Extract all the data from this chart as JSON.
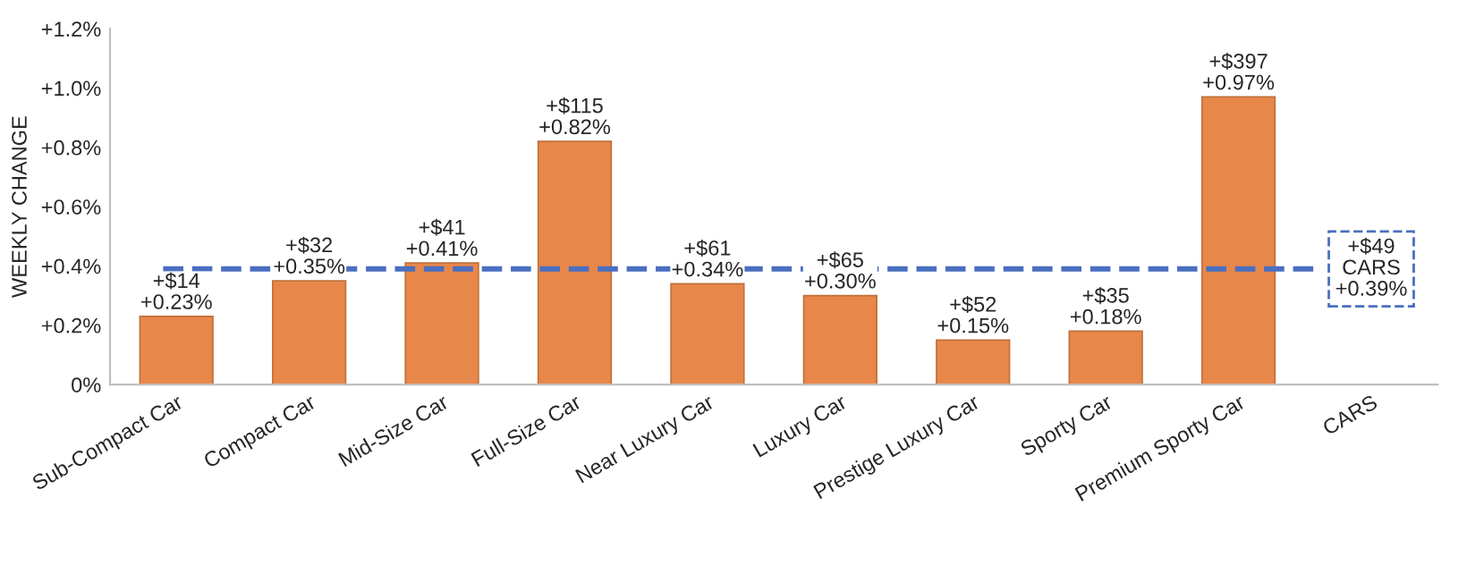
{
  "chart_data": {
    "type": "bar",
    "ylabel": "WEEKLY CHANGE",
    "categories": [
      "Sub-Compact Car",
      "Compact Car",
      "Mid-Size Car",
      "Full-Size Car",
      "Near Luxury Car",
      "Luxury Car",
      "Prestige Luxury Car",
      "Sporty Car",
      "Premium Sporty Car",
      "CARS"
    ],
    "values": [
      0.23,
      0.35,
      0.41,
      0.82,
      0.34,
      0.3,
      0.15,
      0.18,
      0.97,
      null
    ],
    "value_labels": [
      "+$14\n+0.23%",
      "+$32\n+0.35%",
      "+$41\n+0.41%",
      "+$115\n+0.82%",
      "+$61\n+0.34%",
      "+$65\n+0.30%",
      "+$52\n+0.15%",
      "+$35\n+0.18%",
      "+$397\n+0.97%",
      null
    ],
    "color": "#e8874a",
    "ylim": [
      0,
      1.2
    ],
    "yticks": [
      {
        "value": 0,
        "label": "0%"
      },
      {
        "value": 0.2,
        "label": "+0.2%"
      },
      {
        "value": 0.4,
        "label": "+0.4%"
      },
      {
        "value": 0.6,
        "label": "+0.6%"
      },
      {
        "value": 0.8,
        "label": "+0.8%"
      },
      {
        "value": 1.0,
        "label": "+1.0%"
      },
      {
        "value": 1.2,
        "label": "+1.2%"
      }
    ],
    "ref_lines": [
      {
        "axis": "y",
        "value": 0.39,
        "label": "+$49\nCARS\n+0.39%",
        "color": "#4a6fc0",
        "line_style": "dashed"
      }
    ],
    "grid": false,
    "legend": false
  }
}
